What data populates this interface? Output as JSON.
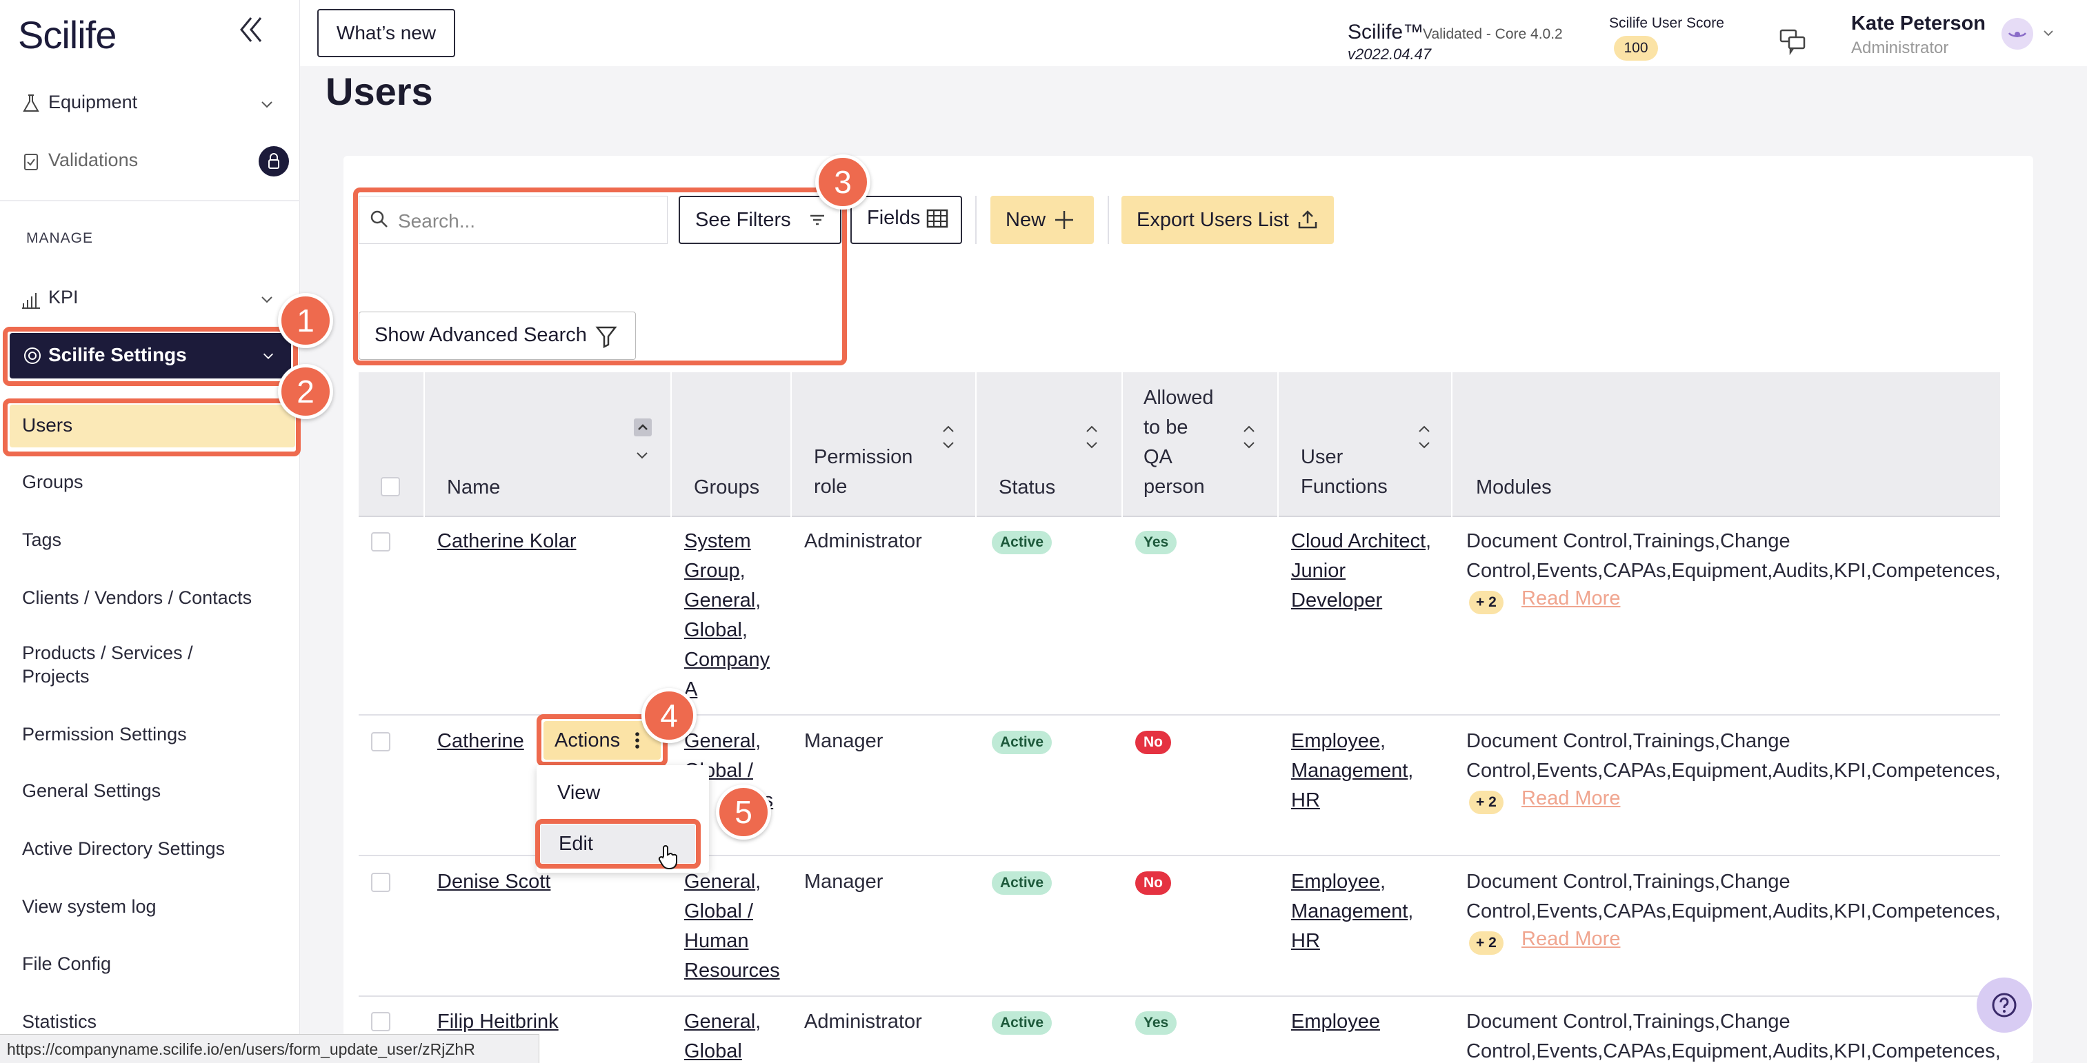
{
  "sidebar": {
    "logo": "Scilife",
    "items": [
      {
        "label": "Equipment"
      },
      {
        "label": "Validations"
      },
      {
        "label": "KPI"
      },
      {
        "label": "Scilife Settings"
      },
      {
        "label": "Users"
      },
      {
        "label": "Groups"
      },
      {
        "label": "Tags"
      },
      {
        "label": "Clients / Vendors / Contacts"
      },
      {
        "label": "Products / Services /"
      },
      {
        "label": "Projects"
      },
      {
        "label": "Permission Settings"
      },
      {
        "label": "General Settings"
      },
      {
        "label": "Active Directory Settings"
      },
      {
        "label": "View system log"
      },
      {
        "label": "File Config"
      },
      {
        "label": "Statistics"
      }
    ],
    "section": "MANAGE"
  },
  "topbar": {
    "whats_new": "What’s new",
    "product": "Scilife™",
    "validated": "Validated - Core 4.0.2",
    "version": "v2022.04.47",
    "score_label": "Scilife User Score",
    "score": "100",
    "user_name": "Kate Peterson",
    "user_role": "Administrator"
  },
  "page": {
    "title": "Users",
    "search_placeholder": "Search...",
    "see_filters": "See Filters",
    "fields": "Fields",
    "new": "New",
    "export": "Export Users List",
    "advanced": "Show Advanced Search"
  },
  "table": {
    "headers": {
      "name": "Name",
      "groups": "Groups",
      "perm1": "Permission",
      "perm2": "role",
      "status": "Status",
      "qa1": "Allowed",
      "qa2": "to be",
      "qa3": "QA",
      "qa4": "person",
      "uf1": "User",
      "uf2": "Functions",
      "modules": "Modules"
    },
    "rows": [
      {
        "name": "Catherine Kolar",
        "groups": [
          "System",
          "Group",
          "General",
          "Global",
          "Company",
          "A"
        ],
        "role": "Administrator",
        "status": "Active",
        "qa": "Yes",
        "functions": [
          "Cloud Architect",
          "Junior",
          "Developer"
        ],
        "modules1": "Document Control,Trainings,Change",
        "modules2": "Control,Events,CAPAs,Equipment,Audits,KPI,Competences,I",
        "more": "+ 2",
        "read_more": "Read More"
      },
      {
        "name": "Catherine",
        "groups": [
          "General",
          "Global /",
          "ces"
        ],
        "role": "Manager",
        "status": "Active",
        "qa": "No",
        "functions": [
          "Employee",
          "Management",
          "HR"
        ],
        "modules1": "Document Control,Trainings,Change",
        "modules2": "Control,Events,CAPAs,Equipment,Audits,KPI,Competences,I",
        "more": "+ 2",
        "read_more": "Read More"
      },
      {
        "name": "Denise Scott",
        "groups": [
          "General",
          "Global /",
          "Human",
          "Resources"
        ],
        "role": "Manager",
        "status": "Active",
        "qa": "No",
        "functions": [
          "Employee",
          "Management",
          "HR"
        ],
        "modules1": "Document Control,Trainings,Change",
        "modules2": "Control,Events,CAPAs,Equipment,Audits,KPI,Competences,I",
        "more": "+ 2",
        "read_more": "Read More"
      },
      {
        "name": "Filip Heitbrink",
        "groups": [
          "General",
          "Global"
        ],
        "role": "Administrator",
        "status": "Active",
        "qa": "Yes",
        "functions": [
          "Employee"
        ],
        "modules1": "Document Control,Trainings,Change",
        "modules2": "Control,Events,CAPAs,Equipment,Audits,KPI,Competences,I"
      }
    ]
  },
  "actions_menu": {
    "button": "Actions",
    "view": "View",
    "edit": "Edit"
  },
  "steps": [
    "1",
    "2",
    "3",
    "4",
    "5"
  ],
  "statusbar_url": "https://companyname.scilife.io/en/users/form_update_user/zRjZhR",
  "colors": {
    "brand_dark": "#1c1b3a",
    "highlight": "#ee6a4e",
    "yellow": "#fbe3a6",
    "active_green": "#bfead6",
    "no_red": "#e53241"
  }
}
